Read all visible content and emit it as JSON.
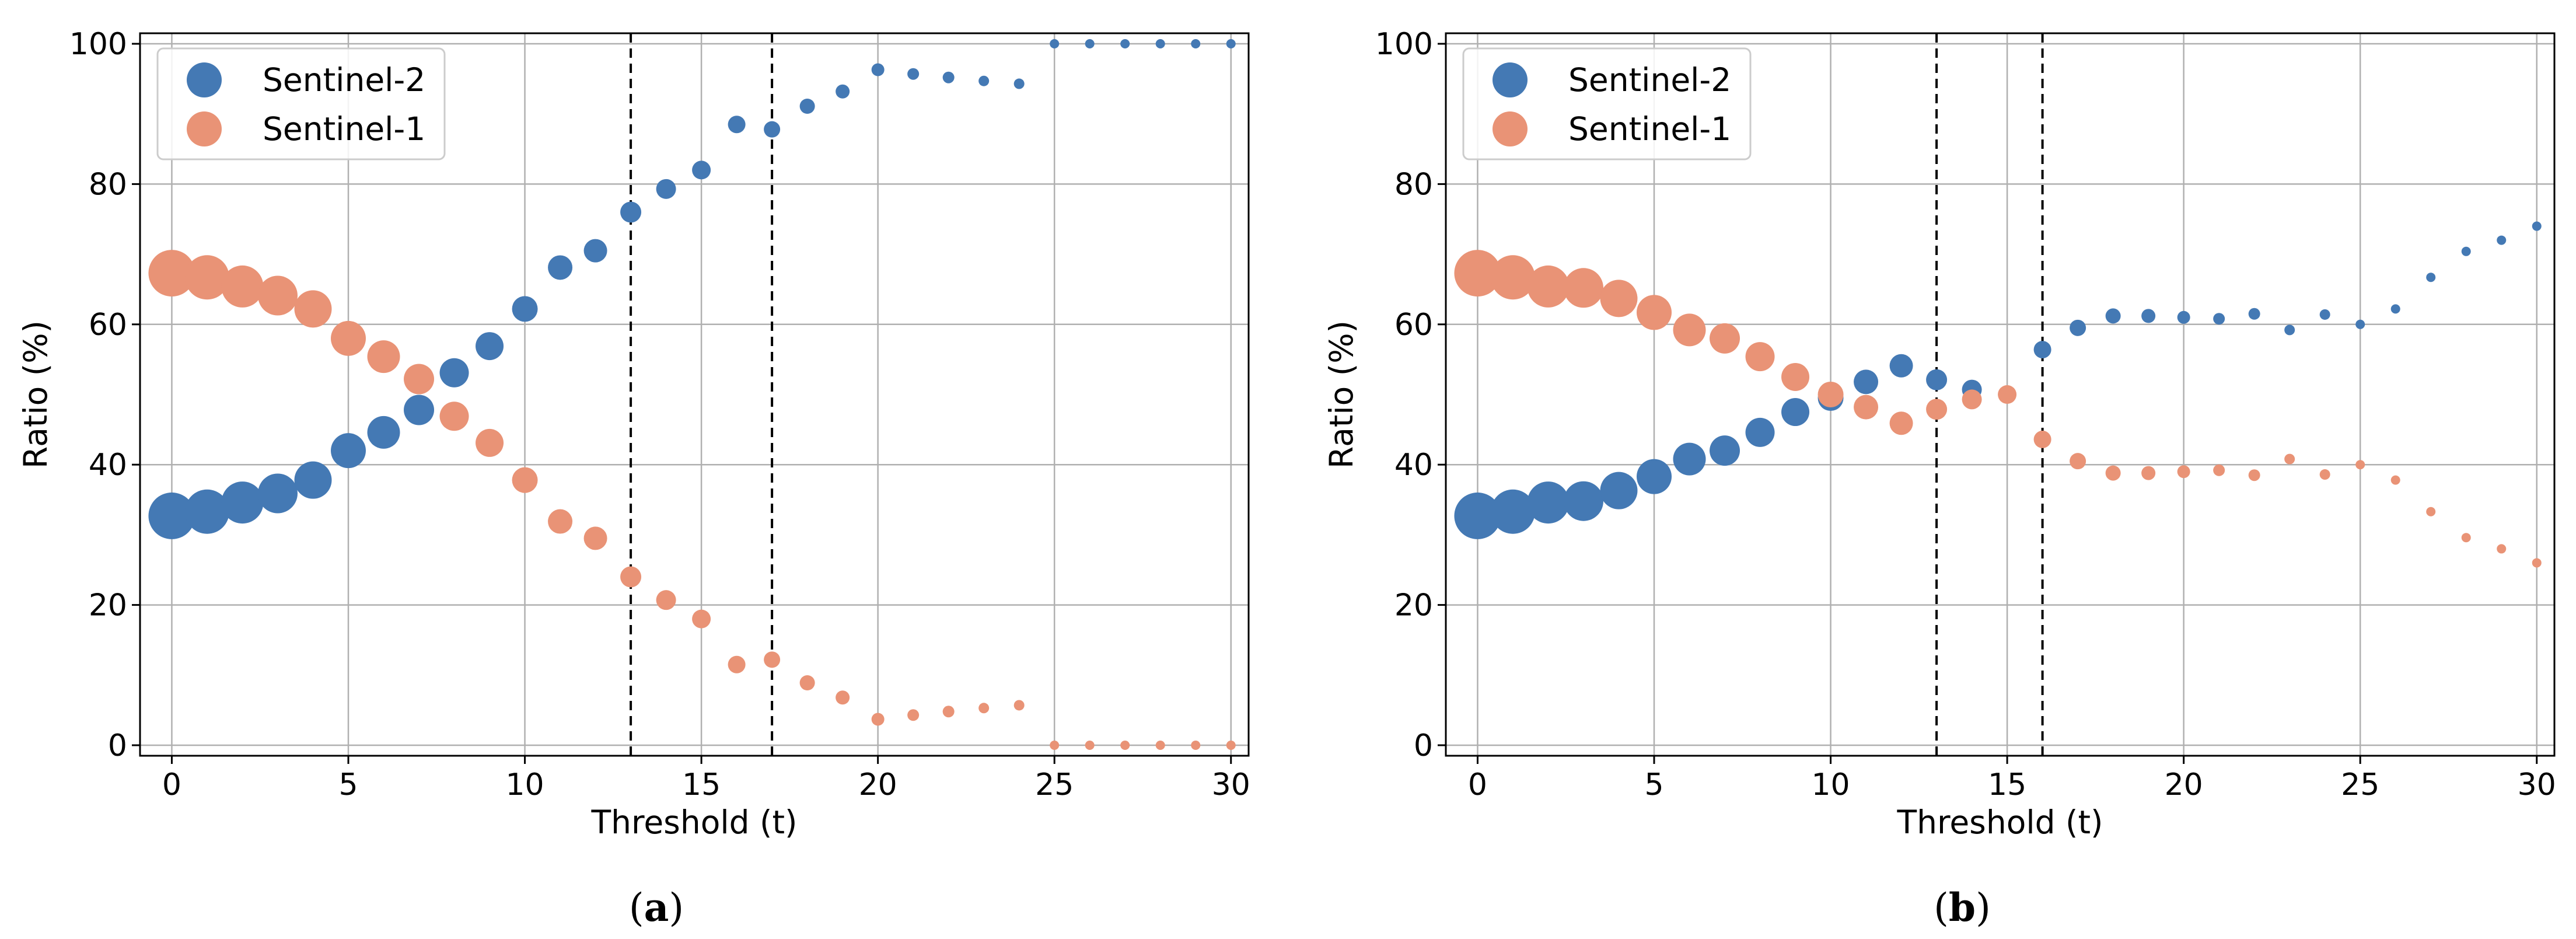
{
  "colors": {
    "sentinel2": "#4479b4",
    "sentinel1": "#e99376",
    "grid": "#b0b0b0",
    "frame": "#000000",
    "legend_border": "#cccccc"
  },
  "chart_data": [
    {
      "type": "scatter",
      "caption_letter": "a",
      "xlabel": "Threshold (t)",
      "ylabel": "Ratio (%)",
      "xlim": [
        -0.9,
        30.5
      ],
      "ylim": [
        -1.5,
        101.5
      ],
      "xticks": [
        0,
        5,
        10,
        15,
        20,
        25,
        30
      ],
      "yticks": [
        0,
        20,
        40,
        60,
        80,
        100
      ],
      "grid": true,
      "legend_position": "upper-left",
      "vlines": [
        13,
        17
      ],
      "x": [
        0,
        1,
        2,
        3,
        4,
        5,
        6,
        7,
        8,
        9,
        10,
        11,
        12,
        13,
        14,
        15,
        16,
        17,
        18,
        19,
        20,
        21,
        22,
        23,
        24,
        25,
        26,
        27,
        28,
        29,
        30
      ],
      "sizes": [
        40,
        38,
        36,
        34,
        32,
        30,
        28,
        26,
        25,
        24,
        22,
        21,
        20,
        18,
        17,
        16,
        15,
        14,
        13,
        12,
        11,
        10,
        10,
        9,
        9,
        8,
        8,
        8,
        8,
        8,
        8
      ],
      "series": [
        {
          "name": "Sentinel-2",
          "color_key": "sentinel2",
          "values": [
            32.7,
            33.3,
            34.6,
            35.9,
            37.8,
            42.0,
            44.6,
            47.8,
            53.1,
            56.9,
            62.2,
            68.1,
            70.5,
            76.0,
            79.3,
            82.0,
            88.5,
            87.8,
            91.1,
            93.2,
            96.3,
            95.7,
            95.2,
            94.7,
            94.3,
            100,
            100,
            100,
            100,
            100,
            100
          ]
        },
        {
          "name": "Sentinel-1",
          "color_key": "sentinel1",
          "values": [
            67.3,
            66.7,
            65.4,
            64.1,
            62.2,
            58.0,
            55.4,
            52.2,
            46.9,
            43.1,
            37.8,
            31.9,
            29.5,
            24.0,
            20.7,
            18.0,
            11.5,
            12.2,
            8.9,
            6.8,
            3.7,
            4.3,
            4.8,
            5.3,
            5.7,
            0,
            0,
            0,
            0,
            0,
            0
          ]
        }
      ]
    },
    {
      "type": "scatter",
      "caption_letter": "b",
      "xlabel": "Threshold (t)",
      "ylabel": "Ratio (%)",
      "xlim": [
        -0.9,
        30.5
      ],
      "ylim": [
        -1.5,
        101.5
      ],
      "xticks": [
        0,
        5,
        10,
        15,
        20,
        25,
        30
      ],
      "yticks": [
        0,
        20,
        40,
        60,
        80,
        100
      ],
      "grid": true,
      "legend_position": "upper-left",
      "vlines": [
        13,
        16
      ],
      "x": [
        0,
        1,
        2,
        3,
        4,
        5,
        6,
        7,
        8,
        9,
        10,
        11,
        12,
        13,
        14,
        15,
        16,
        17,
        18,
        19,
        20,
        21,
        22,
        23,
        24,
        25,
        26,
        27,
        28,
        29,
        30
      ],
      "sizes": [
        40,
        38,
        36,
        34,
        32,
        30,
        28,
        26,
        25,
        24,
        22,
        21,
        20,
        18,
        17,
        16,
        15,
        14,
        13,
        12,
        11,
        10,
        10,
        9,
        9,
        8,
        8,
        8,
        8,
        8,
        8
      ],
      "series": [
        {
          "name": "Sentinel-2",
          "color_key": "sentinel2",
          "values": [
            32.7,
            33.3,
            34.6,
            34.8,
            36.3,
            38.3,
            40.8,
            42.0,
            44.6,
            47.5,
            49.5,
            51.8,
            54.1,
            52.1,
            50.7,
            null,
            56.4,
            59.5,
            61.2,
            61.2,
            61.0,
            60.8,
            61.5,
            59.2,
            61.4,
            60.0,
            62.2,
            66.7,
            70.4,
            72.0,
            74.0
          ]
        },
        {
          "name": "Sentinel-1",
          "color_key": "sentinel1",
          "values": [
            67.3,
            66.7,
            65.4,
            65.2,
            63.7,
            61.7,
            59.2,
            58.0,
            55.4,
            52.5,
            50.0,
            48.2,
            45.9,
            47.9,
            49.3,
            50.0,
            43.6,
            40.5,
            38.8,
            38.8,
            39.0,
            39.2,
            38.5,
            40.8,
            38.6,
            40.0,
            37.8,
            33.3,
            29.6,
            28.0,
            26.0
          ]
        }
      ]
    }
  ]
}
